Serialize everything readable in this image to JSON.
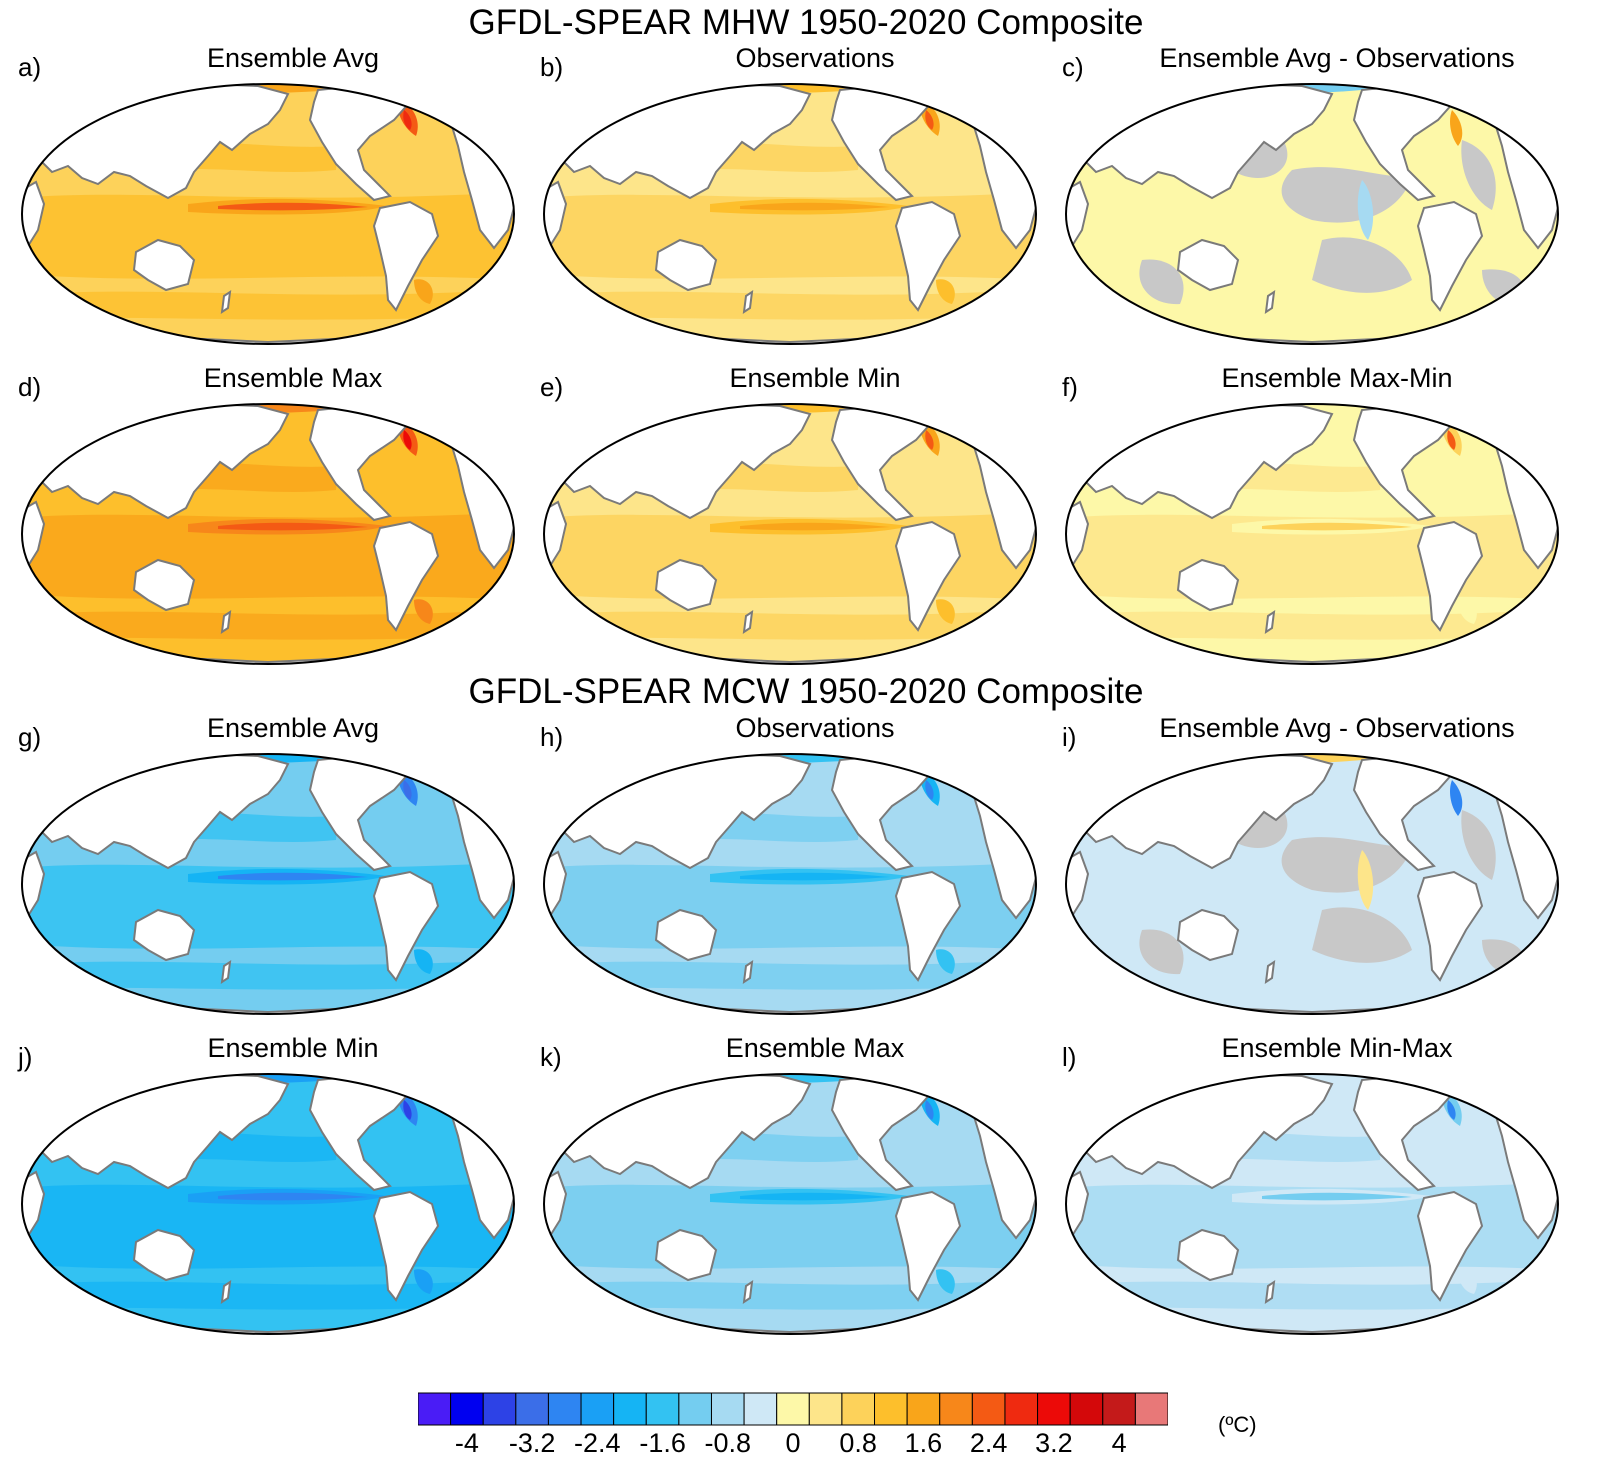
{
  "sections": [
    {
      "title": "GFDL-SPEAR MHW 1950-2020 Composite"
    },
    {
      "title": "GFDL-SPEAR MCW 1950-2020 Composite"
    }
  ],
  "panels": [
    {
      "label": "a)",
      "title": "Ensemble Avg",
      "field": "Ensemble Avg MHW"
    },
    {
      "label": "b)",
      "title": "Observations",
      "field": "Observations MHW"
    },
    {
      "label": "c)",
      "title": "Ensemble Avg - Observations",
      "field": "Difference MHW"
    },
    {
      "label": "d)",
      "title": "Ensemble Max",
      "field": "Ensemble Max MHW"
    },
    {
      "label": "e)",
      "title": "Ensemble Min",
      "field": "Ensemble Min MHW"
    },
    {
      "label": "f)",
      "title": "Ensemble Max-Min",
      "field": "Spread MHW"
    },
    {
      "label": "g)",
      "title": "Ensemble Avg",
      "field": "Ensemble Avg MCW"
    },
    {
      "label": "h)",
      "title": "Observations",
      "field": "Observations MCW"
    },
    {
      "label": "i)",
      "title": "Ensemble Avg - Observations",
      "field": "Difference MCW"
    },
    {
      "label": "j)",
      "title": "Ensemble Min",
      "field": "Ensemble Min MCW"
    },
    {
      "label": "k)",
      "title": "Ensemble Max",
      "field": "Ensemble Max MCW"
    },
    {
      "label": "l)",
      "title": "Ensemble Min-Max",
      "field": "Spread MCW"
    }
  ],
  "colorbar": {
    "units": "(ºC)",
    "colors": [
      "#4a1cf6",
      "#0000f0",
      "#2d42e6",
      "#3b6ee8",
      "#2e85f2",
      "#1aa0f5",
      "#15b4f4",
      "#33c2f2",
      "#74cdf0",
      "#a6daf2",
      "#cfe8f6",
      "#fdf8a8",
      "#fde58a",
      "#fdd25a",
      "#fdbf2c",
      "#f9a51a",
      "#f7871a",
      "#f45a14",
      "#ef2a10",
      "#ec0a08",
      "#d4080a",
      "#c41a1a",
      "#e87878"
    ],
    "tick_labels": [
      "-4",
      "-3.2",
      "-2.4",
      "-1.6",
      "-0.8",
      "0",
      "0.8",
      "1.6",
      "2.4",
      "3.2",
      "4"
    ],
    "tick_values": [
      -4,
      -3.2,
      -2.4,
      -1.6,
      -0.8,
      0,
      0.8,
      1.6,
      2.4,
      3.2,
      4
    ],
    "range": [
      -4.6,
      4.6
    ]
  }
}
